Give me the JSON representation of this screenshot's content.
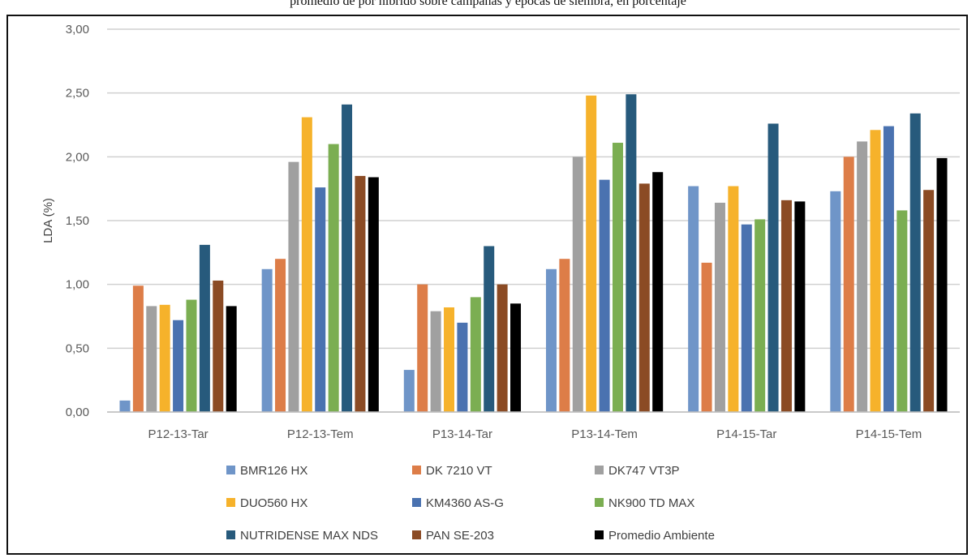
{
  "page": {
    "top_caption": "promedio de por hibrido sobre campañas y épocas de siembra, en porcentaje"
  },
  "chart_data": {
    "type": "bar",
    "title": "",
    "xlabel": "",
    "ylabel": "LDA (%)",
    "ylim": [
      0,
      3
    ],
    "yticks": [
      0,
      0.5,
      1,
      1.5,
      2,
      2.5,
      3
    ],
    "ytick_labels": [
      "0,00",
      "0,50",
      "1,00",
      "1,50",
      "2,00",
      "2,50",
      "3,00"
    ],
    "categories": [
      "P12-13-Tar",
      "P12-13-Tem",
      "P13-14-Tar",
      "P13-14-Tem",
      "P14-15-Tar",
      "P14-15-Tem"
    ],
    "grid": "horizontal",
    "legend_position": "bottom",
    "series": [
      {
        "name": "BMR126 HX",
        "color": "#6f95c8",
        "values": [
          0.09,
          1.12,
          0.33,
          1.12,
          1.77,
          1.73
        ]
      },
      {
        "name": "DK 7210 VT",
        "color": "#dd7d48",
        "values": [
          0.99,
          1.2,
          1.0,
          1.2,
          1.17,
          2.0
        ]
      },
      {
        "name": "DK747 VT3P",
        "color": "#a0a0a0",
        "values": [
          0.83,
          1.96,
          0.79,
          2.0,
          1.64,
          2.12
        ]
      },
      {
        "name": "DUO560 HX",
        "color": "#f6b22b",
        "values": [
          0.84,
          2.31,
          0.82,
          2.48,
          1.77,
          2.21
        ]
      },
      {
        "name": "KM4360 AS-G",
        "color": "#4a72b0",
        "values": [
          0.72,
          1.76,
          0.7,
          1.82,
          1.47,
          2.24
        ]
      },
      {
        "name": "NK900 TD MAX",
        "color": "#7bae52",
        "values": [
          0.88,
          2.1,
          0.9,
          2.11,
          1.51,
          1.58
        ]
      },
      {
        "name": "NUTRIDENSE MAX NDS",
        "color": "#275a7c",
        "values": [
          1.31,
          2.41,
          1.3,
          2.49,
          2.26,
          2.34
        ]
      },
      {
        "name": "PAN SE-203",
        "color": "#8b4b24",
        "values": [
          1.03,
          1.85,
          1.0,
          1.79,
          1.66,
          1.74
        ]
      },
      {
        "name": "Promedio Ambiente",
        "color": "#000000",
        "values": [
          0.83,
          1.84,
          0.85,
          1.88,
          1.65,
          1.99
        ]
      }
    ]
  }
}
